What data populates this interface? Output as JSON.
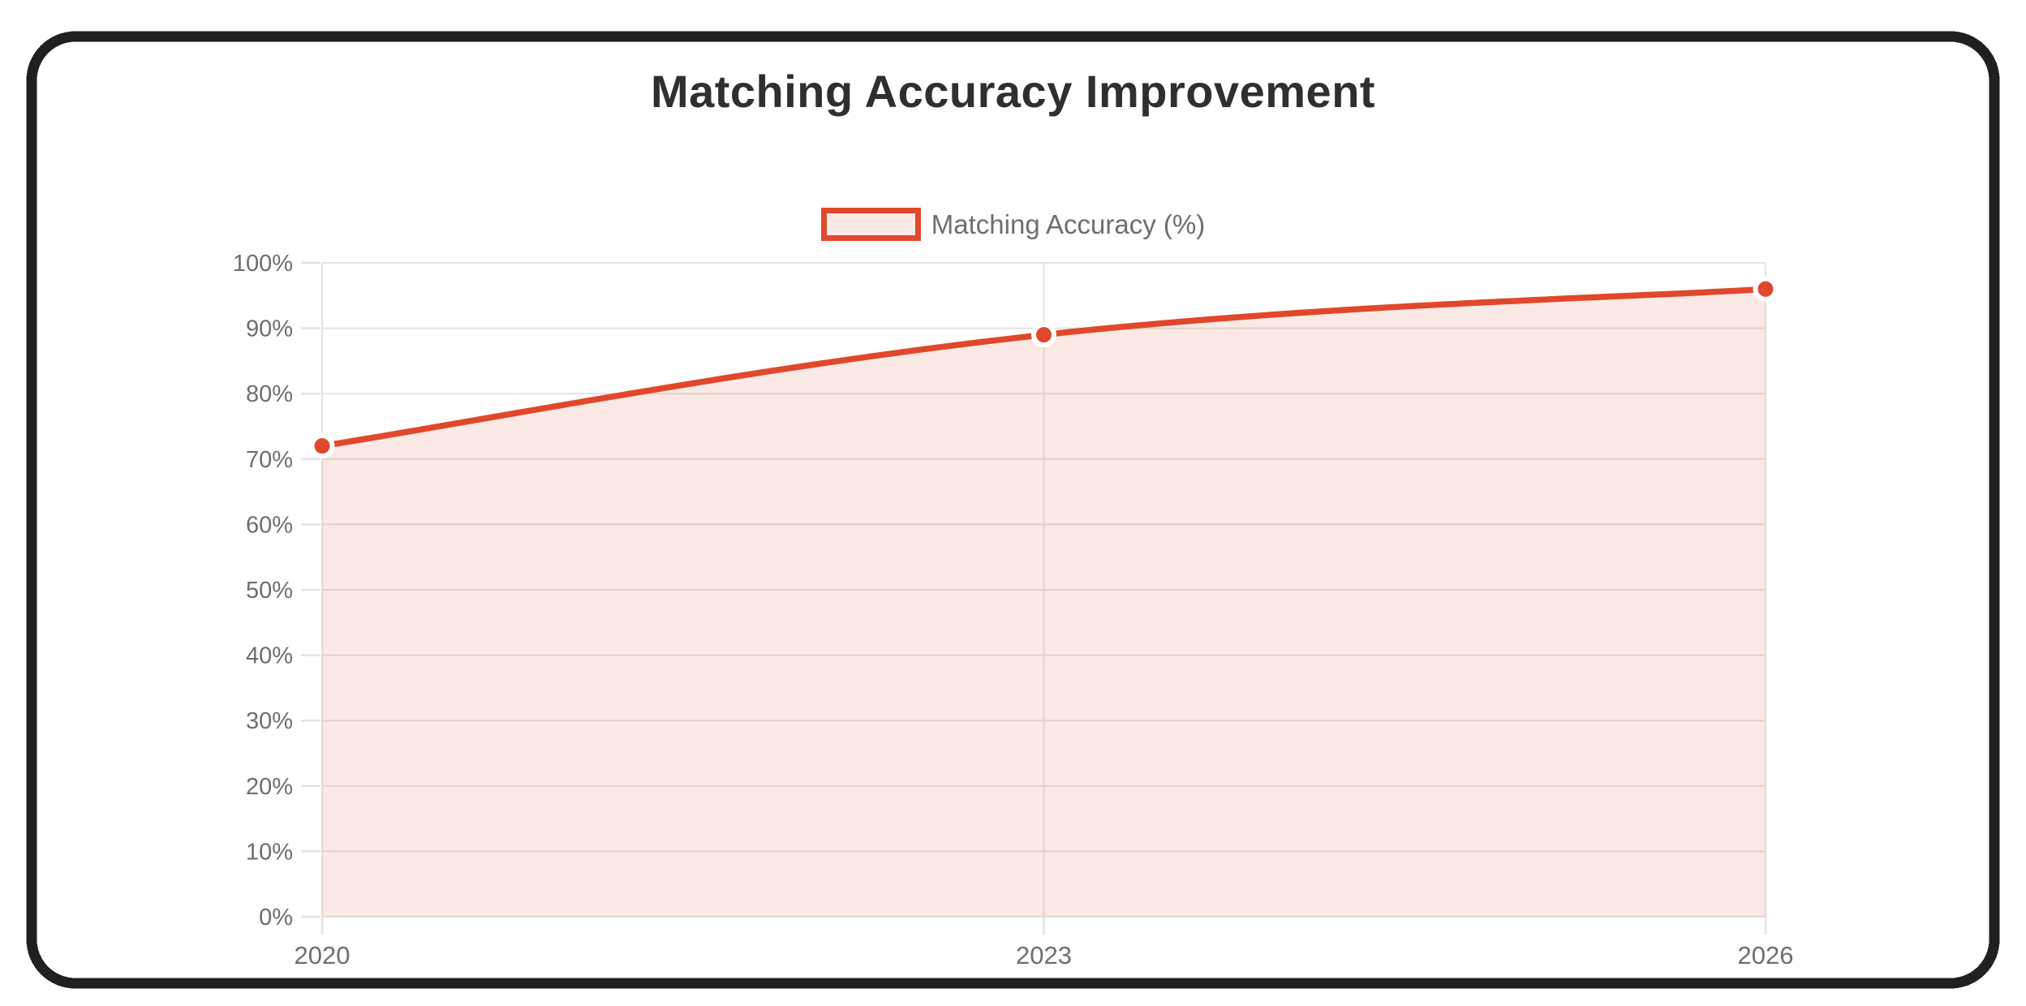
{
  "chart_data": {
    "type": "area",
    "title": "Matching Accuracy Improvement",
    "categories": [
      "2020",
      "2023",
      "2026"
    ],
    "series": [
      {
        "name": "Matching Accuracy (%)",
        "values": [
          72,
          89,
          96
        ]
      }
    ],
    "ylim": [
      0,
      100
    ],
    "ytick_step": 10,
    "ytick_labels": [
      "0%",
      "10%",
      "20%",
      "30%",
      "40%",
      "50%",
      "60%",
      "70%",
      "80%",
      "90%",
      "100%"
    ],
    "grid": true,
    "legend_position": "top",
    "line_tension": 0.4,
    "colors": {
      "line": "#e0482c",
      "fill": "rgba(224,72,44,0.12)",
      "swatch_fill": "#fbe9e6",
      "grid": "#e3e3e3",
      "tick_label": "#6e6e6e",
      "legend_label": "#6e6e6e",
      "title": "#2f2f2f",
      "point_fill": "#e0482c",
      "point_border": "#ffffff",
      "frame": "#202020"
    }
  }
}
